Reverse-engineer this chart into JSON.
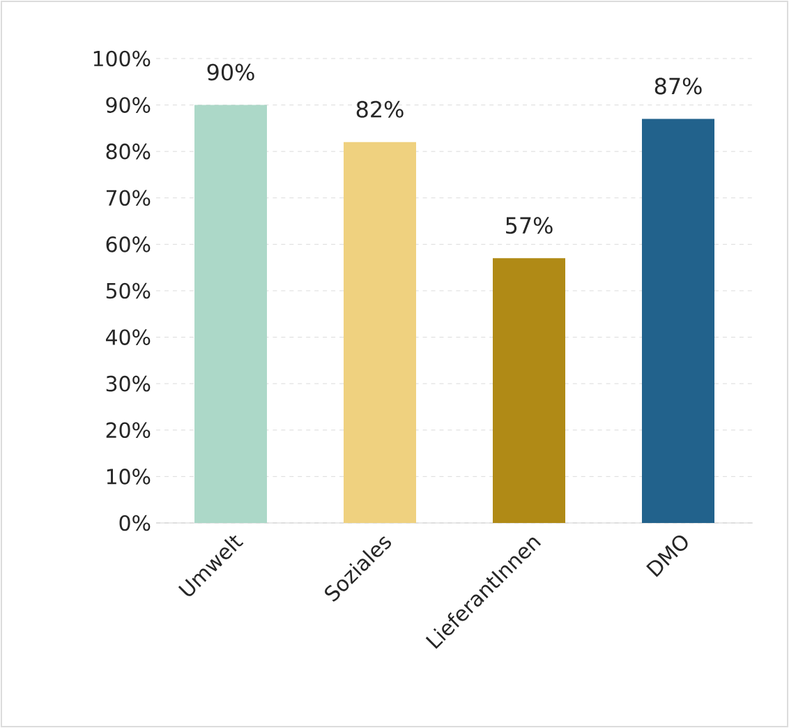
{
  "chart_data": {
    "type": "bar",
    "categories": [
      "Umwelt",
      "Soziales",
      "LieferantInnen",
      "DMO"
    ],
    "values": [
      90,
      82,
      57,
      87
    ],
    "colors": [
      "#acd8c8",
      "#efd17f",
      "#b08a16",
      "#22628c"
    ],
    "value_labels": [
      "90%",
      "82%",
      "57%",
      "87%"
    ],
    "ylim": [
      0,
      100
    ],
    "yticks": [
      {
        "value": 0,
        "label": "0%"
      },
      {
        "value": 10,
        "label": "10%"
      },
      {
        "value": 20,
        "label": "20%"
      },
      {
        "value": 30,
        "label": "30%"
      },
      {
        "value": 40,
        "label": "40%"
      },
      {
        "value": 50,
        "label": "50%"
      },
      {
        "value": 60,
        "label": "60%"
      },
      {
        "value": 70,
        "label": "70%"
      },
      {
        "value": 80,
        "label": "80%"
      },
      {
        "value": 90,
        "label": "90%"
      },
      {
        "value": 100,
        "label": "100%"
      }
    ],
    "grid": "y"
  }
}
